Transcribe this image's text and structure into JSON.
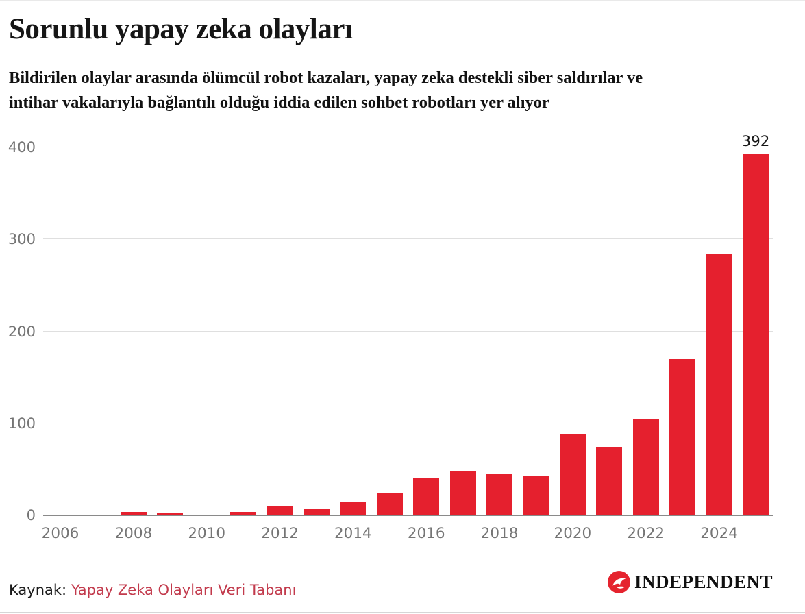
{
  "header": {
    "title": "Sorunlu yapay zeka olayları",
    "subtitle_line1": "Bildirilen olaylar arasında ölümcül robot kazaları, yapay zeka destekli siber saldırılar ve",
    "subtitle_line2": "intihar vakalarıyla bağlantılı olduğu iddia edilen sohbet robotları yer alıyor"
  },
  "chart_data": {
    "type": "bar",
    "title": "Sorunlu yapay zeka olayları",
    "categories": [
      2006,
      2007,
      2008,
      2009,
      2010,
      2011,
      2012,
      2013,
      2014,
      2015,
      2016,
      2017,
      2018,
      2019,
      2020,
      2021,
      2022,
      2023,
      2024,
      2025
    ],
    "values": [
      0,
      0,
      3,
      2,
      0,
      3,
      9,
      6,
      14,
      24,
      40,
      48,
      44,
      42,
      87,
      74,
      104,
      169,
      284,
      392
    ],
    "y_ticks": [
      0,
      100,
      200,
      300,
      400
    ],
    "x_tick_labels": [
      "2006",
      "2008",
      "2010",
      "2012",
      "2014",
      "2016",
      "2018",
      "2020",
      "2022",
      "2024"
    ],
    "ylim": [
      0,
      400
    ],
    "grid": "horizontal",
    "legend": "none",
    "bar_color": "#e5202e",
    "annotation": {
      "year": 2025,
      "label": "392"
    }
  },
  "footer": {
    "source_prefix": "Kaynak:",
    "source_link": "Yapay Zeka Olayları Veri Tabanı",
    "logo_text": "INDEPENDENT"
  },
  "colors": {
    "bar_red": "#e5202e",
    "link_red": "#c23a4c",
    "logo_red": "#e5232e",
    "axis_label_gray": "#757575",
    "gridline_gray": "#dfdfdf",
    "axis_line_gray": "#8a8a8a",
    "text_black": "#161616"
  }
}
